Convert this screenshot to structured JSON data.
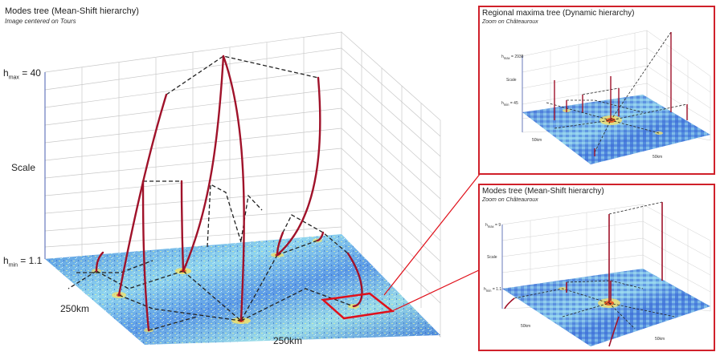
{
  "main": {
    "title": "Modes tree (Mean-Shift hierarchy)",
    "subtitle": "Image centered on Tours",
    "hmax_label": "h",
    "hmax_sub": "max",
    "hmax_value": " = 40",
    "scale_label": "Scale",
    "hmin_label": "h",
    "hmin_sub": "min",
    "hmin_value": " = 1.1",
    "x_extent": "250km",
    "y_extent": "250km"
  },
  "inset_top": {
    "title": "Regional maxima tree (Dynamic hierarchy)",
    "subtitle": "Zoom on Châteauroux",
    "hmax_text": "h",
    "hmax_sub": "max",
    "hmax_value": " = 2938",
    "scale_label": "Scale",
    "hmin_text": "h",
    "hmin_sub": "min",
    "hmin_value": " = 45",
    "x_extent": "50km",
    "y_extent": "50km"
  },
  "inset_bottom": {
    "title": "Modes tree (Mean-Shift hierarchy)",
    "subtitle": "Zoom on Châteauroux",
    "hmax_text": "h",
    "hmax_sub": "max",
    "hmax_value": " = 9",
    "scale_label": "Scale",
    "hmin_text": "h",
    "hmin_sub": "min",
    "hmin_value": " = 1.1",
    "x_extent": "50km",
    "y_extent": "50km"
  },
  "colors": {
    "tree_edge": "#a0122a",
    "dashed_link": "#222222",
    "highlight": "#e0101a",
    "grid": "#c8c8c8",
    "map_low": "#3a6fd8",
    "map_mid": "#8fd4ee",
    "map_high": "#f0e070"
  }
}
